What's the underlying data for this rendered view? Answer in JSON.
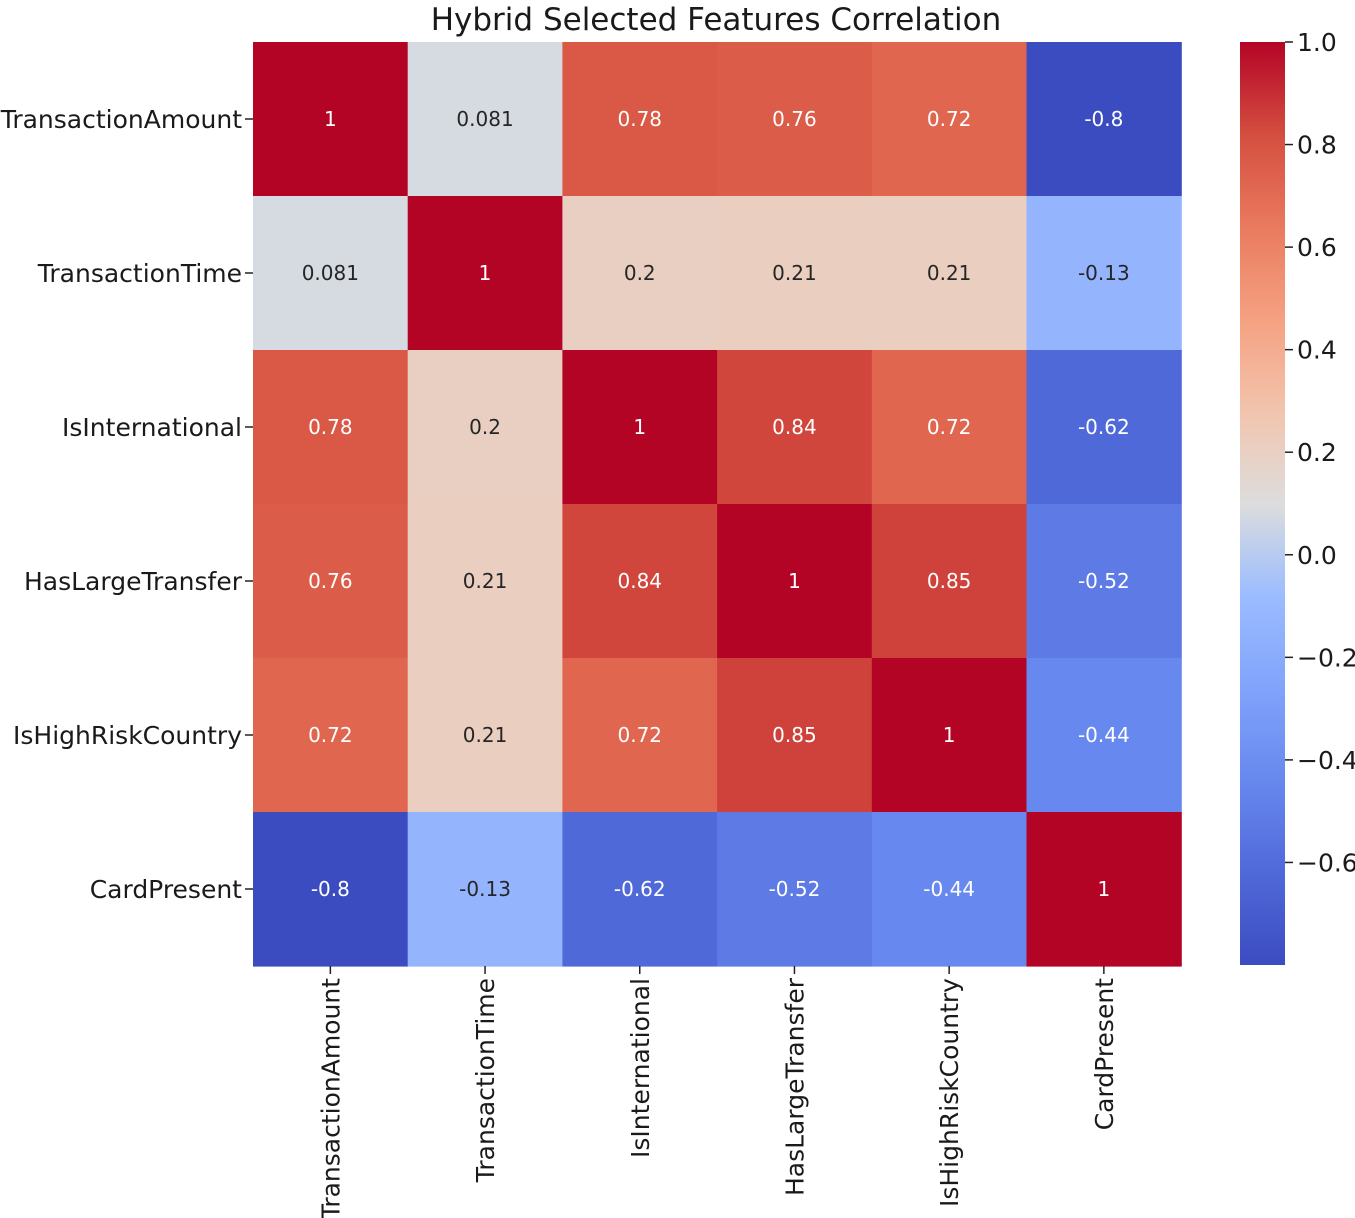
{
  "chart_data": {
    "type": "heatmap",
    "title": "Hybrid Selected Features Correlation",
    "row_labels": [
      "TransactionAmount",
      "TransactionTime",
      "IsInternational",
      "HasLargeTransfer",
      "IsHighRiskCountry",
      "CardPresent"
    ],
    "col_labels": [
      "TransactionAmount",
      "TransactionTime",
      "IsInternational",
      "HasLargeTransfer",
      "IsHighRiskCountry",
      "CardPresent"
    ],
    "values": [
      [
        1,
        0.081,
        0.78,
        0.76,
        0.72,
        -0.8
      ],
      [
        0.081,
        1,
        0.2,
        0.21,
        0.21,
        -0.13
      ],
      [
        0.78,
        0.2,
        1,
        0.84,
        0.72,
        -0.62
      ],
      [
        0.76,
        0.21,
        0.84,
        1,
        0.85,
        -0.52
      ],
      [
        0.72,
        0.21,
        0.72,
        0.85,
        1,
        -0.44
      ],
      [
        -0.8,
        -0.13,
        -0.62,
        -0.52,
        -0.44,
        1
      ]
    ],
    "cell_labels": [
      [
        "1",
        "0.081",
        "0.78",
        "0.76",
        "0.72",
        "-0.8"
      ],
      [
        "0.081",
        "1",
        "0.2",
        "0.21",
        "0.21",
        "-0.13"
      ],
      [
        "0.78",
        "0.2",
        "1",
        "0.84",
        "0.72",
        "-0.62"
      ],
      [
        "0.76",
        "0.21",
        "0.84",
        "1",
        "0.85",
        "-0.52"
      ],
      [
        "0.72",
        "0.21",
        "0.72",
        "0.85",
        "1",
        "-0.44"
      ],
      [
        "-0.8",
        "-0.13",
        "-0.62",
        "-0.52",
        "-0.44",
        "1"
      ]
    ],
    "colormap": "coolwarm",
    "colorbar": {
      "range": [
        -0.8,
        1.0
      ],
      "ticks": [
        1.0,
        0.8,
        0.6,
        0.4,
        0.2,
        0.0,
        -0.2,
        -0.4,
        -0.6
      ],
      "tick_labels": [
        "1.0",
        "0.8",
        "0.6",
        "0.4",
        "0.2",
        "0.0",
        "−0.2",
        "−0.4",
        "−0.6"
      ],
      "placement": "right"
    },
    "annotations_shown": true
  }
}
